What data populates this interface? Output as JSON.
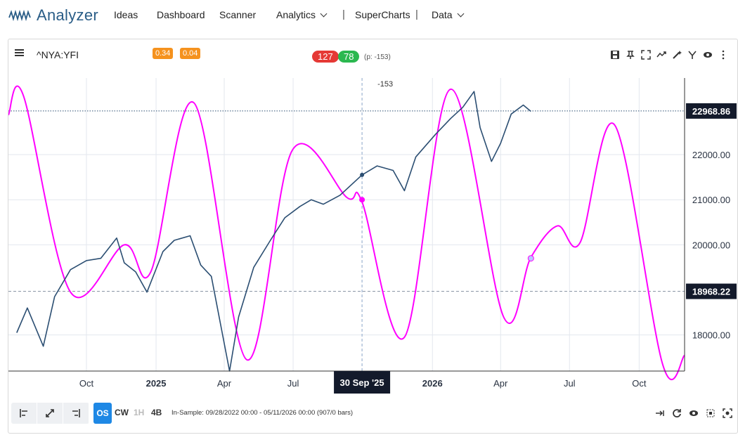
{
  "nav": {
    "brand": "Analyzer",
    "items": [
      {
        "label": "Ideas"
      },
      {
        "label": "Dashboard"
      },
      {
        "label": "Scanner"
      },
      {
        "label": "Analytics"
      },
      {
        "label": "SuperCharts"
      },
      {
        "label": "Data"
      }
    ],
    "separator": "|"
  },
  "header": {
    "symbol": "^NYA:YFI",
    "badge1": "0.34",
    "badge2": "0.04",
    "pill_red": "127",
    "pill_green": "78",
    "p_label": "(p: -153)"
  },
  "colors": {
    "price_line": "#2b4e72",
    "cycle_line": "#ff00ff",
    "badge_orange": "#f5921e",
    "pill_red": "#e53935",
    "pill_green": "#2bb84f",
    "active_blue": "#1e88e5",
    "dark_label": "#131a2b"
  },
  "chart_data": {
    "type": "line",
    "x_ticks": [
      "Oct",
      "2025",
      "Apr",
      "Jul",
      "2026",
      "Apr",
      "Jul",
      "Oct"
    ],
    "y_ticks": [
      "22000.00",
      "21000.00",
      "20000.00",
      "18000.00"
    ],
    "price_labels": {
      "last": "22968.86",
      "reference": "18968.22"
    },
    "cursor_label": "30 Sep '25",
    "cursor_annotation": "-153",
    "ylim": [
      17200,
      23700
    ],
    "series": [
      {
        "line": "price",
        "x": [
          "2024-07-01",
          "2024-07-15",
          "2024-08-05",
          "2024-08-20",
          "2024-09-10",
          "2024-10-01",
          "2024-10-20",
          "2024-11-10",
          "2024-11-20",
          "2024-12-05",
          "2024-12-20",
          "2025-01-10",
          "2025-01-25",
          "2025-02-15",
          "2025-03-01",
          "2025-03-15",
          "2025-04-08",
          "2025-04-20",
          "2025-05-10",
          "2025-06-01",
          "2025-06-20",
          "2025-07-10",
          "2025-07-25",
          "2025-08-10",
          "2025-09-01",
          "2025-09-30",
          "2025-10-20",
          "2025-11-10",
          "2025-11-25",
          "2025-12-10",
          "2026-01-05",
          "2026-01-25",
          "2026-02-10",
          "2026-02-25",
          "2026-03-05",
          "2026-03-20",
          "2026-04-01",
          "2026-04-15",
          "2026-05-01",
          "2026-05-11"
        ],
        "values": [
          18050,
          18600,
          17750,
          18850,
          19450,
          19650,
          19700,
          20150,
          19600,
          19400,
          18950,
          19850,
          20100,
          20200,
          19550,
          19300,
          17200,
          18400,
          19500,
          20100,
          20600,
          20850,
          21000,
          20900,
          21100,
          21550,
          21750,
          21650,
          21200,
          21950,
          22450,
          22800,
          23050,
          23400,
          22600,
          21850,
          22250,
          22900,
          23100,
          22960
        ]
      },
      {
        "line": "cycle",
        "x": [
          "2024-06-20",
          "2024-07-10",
          "2024-09-10",
          "2024-11-20",
          "2024-12-25",
          "2025-02-20",
          "2025-05-01",
          "2025-06-30",
          "2025-09-10",
          "2025-09-30",
          "2025-11-25",
          "2026-01-25",
          "2026-04-05",
          "2026-05-11",
          "2026-06-15",
          "2026-07-15",
          "2026-08-30",
          "2026-11-01",
          "2026-11-30"
        ],
        "values": [
          22880,
          23300,
          18950,
          20000,
          19400,
          23150,
          17450,
          22100,
          21050,
          20950,
          17950,
          23450,
          18400,
          19720,
          20420,
          20050,
          22650,
          17350,
          17550
        ]
      }
    ]
  },
  "markers": {
    "cycle_point": "21000",
    "cycle_last": "19700"
  },
  "bottom": {
    "tf_os": "OS",
    "tf_cw": "CW",
    "tf_1h": "1H",
    "tf_4b": "4B",
    "info": "In-Sample: 09/28/2022 00:00 - 05/11/2026 00:00 (907/0 bars)"
  }
}
